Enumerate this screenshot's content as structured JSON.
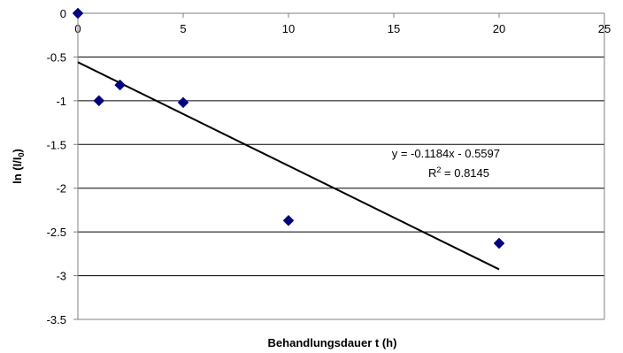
{
  "chart_data": {
    "type": "scatter",
    "xlabel": "Behandlungsdauer t (h)",
    "ylabel_main": "ln (I/I",
    "ylabel_sub": "0",
    "ylabel_end": ")",
    "xlim": [
      0,
      25
    ],
    "ylim": [
      -3.5,
      0
    ],
    "x_ticks": [
      "0",
      "5",
      "10",
      "15",
      "20",
      "25"
    ],
    "y_ticks": [
      "0",
      "-0.5",
      "-1",
      "-1.5",
      "-2",
      "-2.5",
      "-3",
      "-3.5"
    ],
    "grid": "horizontal",
    "legend": "none",
    "marker_color": "#000080",
    "series": [
      {
        "x": [
          0,
          1,
          2,
          5,
          10,
          20
        ],
        "y": [
          0,
          -1.0,
          -0.82,
          -1.02,
          -2.37,
          -2.63
        ]
      }
    ],
    "trendline": {
      "type": "linear",
      "slope": -0.1184,
      "intercept": -0.5597,
      "x_range": [
        0,
        20
      ],
      "equation": "y = -0.1184x - 0.5597",
      "r2_prefix": "R",
      "r2_sup": "2",
      "r2_suffix": " = 0.8145"
    }
  }
}
